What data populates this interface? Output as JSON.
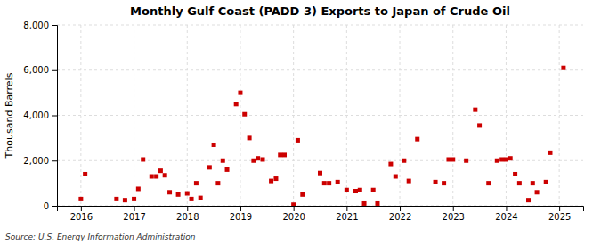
{
  "chart_data": {
    "type": "scatter",
    "title": "Monthly Gulf Coast (PADD 3) Exports to Japan of Crude Oil",
    "ylabel": "Thousand Barrels",
    "source": "Source: U.S. Energy Information Administration",
    "color": "#cc0000",
    "marker": "square",
    "grid": true,
    "xlim": [
      2015.55,
      2025.45
    ],
    "xticks": [
      2016,
      2017,
      2018,
      2019,
      2020,
      2021,
      2022,
      2023,
      2024,
      2025
    ],
    "ylim": [
      0,
      8000
    ],
    "yticks": [
      0,
      {
        "value": 2000,
        "label": "2,000"
      },
      {
        "value": 4000,
        "label": "4,000"
      },
      {
        "value": 6000,
        "label": "6,000"
      },
      {
        "value": 8000,
        "label": "8,000"
      }
    ],
    "x": [
      2016.0,
      2016.08,
      2016.67,
      2016.83,
      2017.0,
      2017.08,
      2017.17,
      2017.33,
      2017.42,
      2017.5,
      2017.58,
      2017.67,
      2017.83,
      2018.0,
      2018.08,
      2018.17,
      2018.25,
      2018.42,
      2018.5,
      2018.58,
      2018.67,
      2018.75,
      2018.92,
      2019.0,
      2019.08,
      2019.17,
      2019.25,
      2019.33,
      2019.42,
      2019.58,
      2019.67,
      2019.75,
      2019.83,
      2020.0,
      2020.08,
      2020.17,
      2020.5,
      2020.58,
      2020.67,
      2020.83,
      2021.0,
      2021.17,
      2021.25,
      2021.33,
      2021.5,
      2021.58,
      2021.83,
      2021.92,
      2022.08,
      2022.17,
      2022.33,
      2022.67,
      2022.83,
      2022.92,
      2023.0,
      2023.25,
      2023.42,
      2023.5,
      2023.67,
      2023.83,
      2023.92,
      2024.0,
      2024.08,
      2024.17,
      2024.25,
      2024.42,
      2024.5,
      2024.58,
      2024.75,
      2024.83,
      2025.08
    ],
    "values": [
      300,
      1400,
      300,
      250,
      300,
      750,
      2050,
      1300,
      1300,
      1550,
      1350,
      600,
      500,
      550,
      300,
      1000,
      350,
      1700,
      2700,
      1000,
      2000,
      1600,
      4500,
      5000,
      4050,
      3000,
      2000,
      2100,
      2050,
      1100,
      1200,
      2250,
      2250,
      50,
      2900,
      500,
      1450,
      1000,
      1000,
      1050,
      700,
      650,
      700,
      100,
      700,
      100,
      1850,
      1300,
      2000,
      1100,
      2950,
      1050,
      1000,
      2050,
      2050,
      2000,
      4250,
      3550,
      1000,
      2000,
      2050,
      2050,
      2100,
      1400,
      1000,
      250,
      1000,
      600,
      1050,
      2350,
      6100
    ]
  }
}
